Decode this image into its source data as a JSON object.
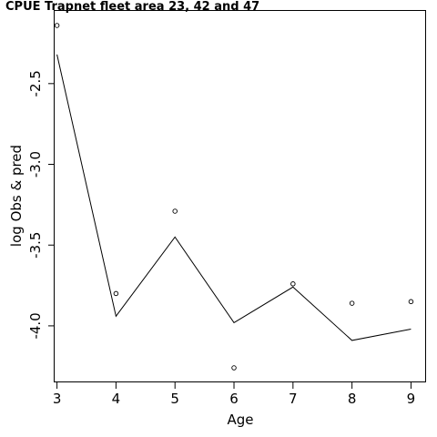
{
  "chart_data": {
    "type": "line",
    "title": "CPUE Trapnet fleet area 23, 42 and 47",
    "xlabel": "Age",
    "ylabel": "log Obs & pred",
    "x": [
      3,
      4,
      5,
      6,
      7,
      8,
      9
    ],
    "x_ticks": [
      "3",
      "4",
      "5",
      "6",
      "7",
      "8",
      "9"
    ],
    "y_ticks": [
      "-2.5",
      "-3.0",
      "-3.5",
      "-4.0"
    ],
    "y_tick_values": [
      -2.5,
      -3.0,
      -3.5,
      -4.0
    ],
    "xlim": [
      2.96,
      9.24
    ],
    "ylim": [
      -4.35,
      -2.05
    ],
    "grid": false,
    "series": [
      {
        "style": "points",
        "marker": "open-circle",
        "values": [
          -2.14,
          -3.8,
          -3.29,
          -4.26,
          -3.74,
          -3.86,
          -3.85
        ]
      },
      {
        "style": "line",
        "values": [
          -2.32,
          -3.94,
          -3.45,
          -3.98,
          -3.76,
          -4.09,
          -4.02
        ]
      }
    ]
  }
}
